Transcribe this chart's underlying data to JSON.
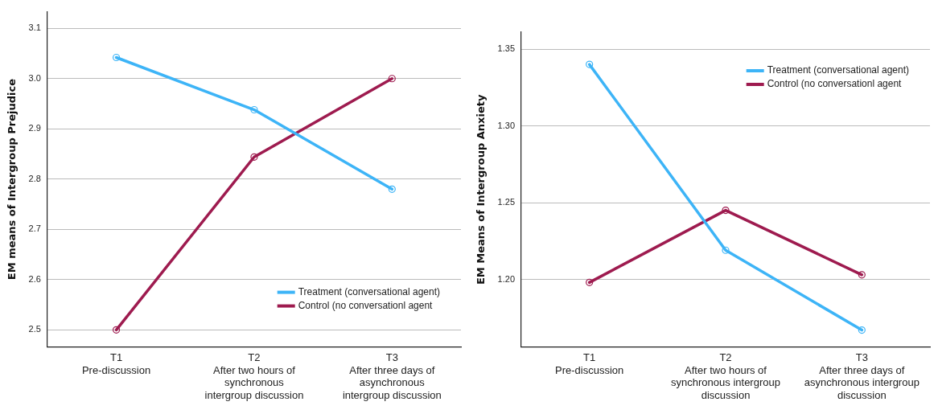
{
  "chart_data": [
    {
      "type": "line",
      "ylabel": "EM means of Intergroup Prejudice",
      "categories": [
        "T1\nPre-discussion",
        "T2\nAfter two hours of\nsynchronous\nintergroup discussion",
        "T3\nAfter three days of\nasynchronous\nintergroup discussion"
      ],
      "series": [
        {
          "name": "Treatment (conversational agent)",
          "color": "#3db4f7",
          "values": [
            3.042,
            2.938,
            2.78
          ]
        },
        {
          "name": "Control (no conversationl agent",
          "color": "#9e1b4f",
          "values": [
            2.5,
            2.844,
            3.0
          ]
        }
      ],
      "ylim": [
        2.466,
        3.133
      ],
      "yticks": [
        {
          "value": 2.5,
          "label": "2.5"
        },
        {
          "value": 2.6,
          "label": "2.6"
        },
        {
          "value": 2.7,
          "label": "2.7"
        },
        {
          "value": 2.8,
          "label": "2.8"
        },
        {
          "value": 2.9,
          "label": "2.9"
        },
        {
          "value": 3.0,
          "label": "3.0"
        },
        {
          "value": 3.1,
          "label": "3.1"
        }
      ],
      "grid": "y",
      "legend": "bottom right",
      "marker": "circle",
      "line_style": "solid"
    },
    {
      "type": "line",
      "ylabel": "EM Means of Intergroup Anxiety",
      "categories": [
        "T1\nPre-discussion",
        "T2\nAfter two hours of\nsynchronous intergroup\ndiscussion",
        "T3\nAfter three days of\nasynchronous intergroup\ndiscussion"
      ],
      "series": [
        {
          "name": "Treatment (conversational agent)",
          "color": "#3db4f7",
          "values": [
            1.34,
            1.219,
            1.167
          ]
        },
        {
          "name": "Control (no conversationl agent",
          "color": "#9e1b4f",
          "values": [
            1.198,
            1.245,
            1.203
          ]
        }
      ],
      "ylim": [
        1.156,
        1.361
      ],
      "yticks": [
        {
          "value": 1.2,
          "label": "1.20"
        },
        {
          "value": 1.25,
          "label": "1.25"
        },
        {
          "value": 1.3,
          "label": "1.30"
        },
        {
          "value": 1.35,
          "label": "1.35"
        }
      ],
      "grid": "y",
      "legend": "top right",
      "marker": "circle",
      "line_style": "solid"
    }
  ]
}
